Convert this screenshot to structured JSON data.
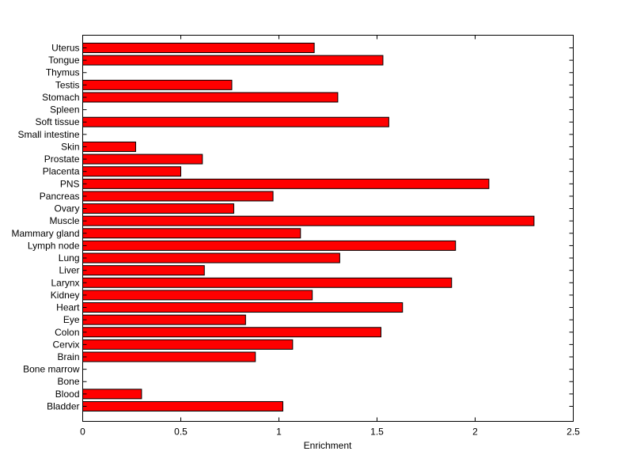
{
  "chart_data": {
    "type": "bar",
    "orientation": "horizontal",
    "categories": [
      "Uterus",
      "Tongue",
      "Thymus",
      "Testis",
      "Stomach",
      "Spleen",
      "Soft tissue",
      "Small intestine",
      "Skin",
      "Prostate",
      "Placenta",
      "PNS",
      "Pancreas",
      "Ovary",
      "Muscle",
      "Mammary gland",
      "Lymph node",
      "Lung",
      "Liver",
      "Larynx",
      "Kidney",
      "Heart",
      "Eye",
      "Colon",
      "Cervix",
      "Brain",
      "Bone marrow",
      "Bone",
      "Blood",
      "Bladder"
    ],
    "values": [
      1.18,
      1.53,
      0,
      0.76,
      1.3,
      0,
      1.56,
      0,
      0.27,
      0.61,
      0.5,
      2.07,
      0.97,
      0.77,
      2.3,
      1.11,
      1.9,
      1.31,
      0.62,
      1.88,
      1.17,
      1.63,
      0.83,
      1.52,
      1.07,
      0.88,
      0,
      0,
      0.3,
      1.02
    ],
    "xlabel": "Enrichment",
    "ylabel": "",
    "title": "",
    "xlim": [
      0,
      2.5
    ],
    "xticks": [
      0,
      0.5,
      1,
      1.5,
      2,
      2.5
    ],
    "xtick_labels": [
      "0",
      "0.5",
      "1",
      "1.5",
      "2",
      "2.5"
    ],
    "grid": false,
    "bar_color": "#ff0000",
    "bar_edge_color": "#000000"
  }
}
